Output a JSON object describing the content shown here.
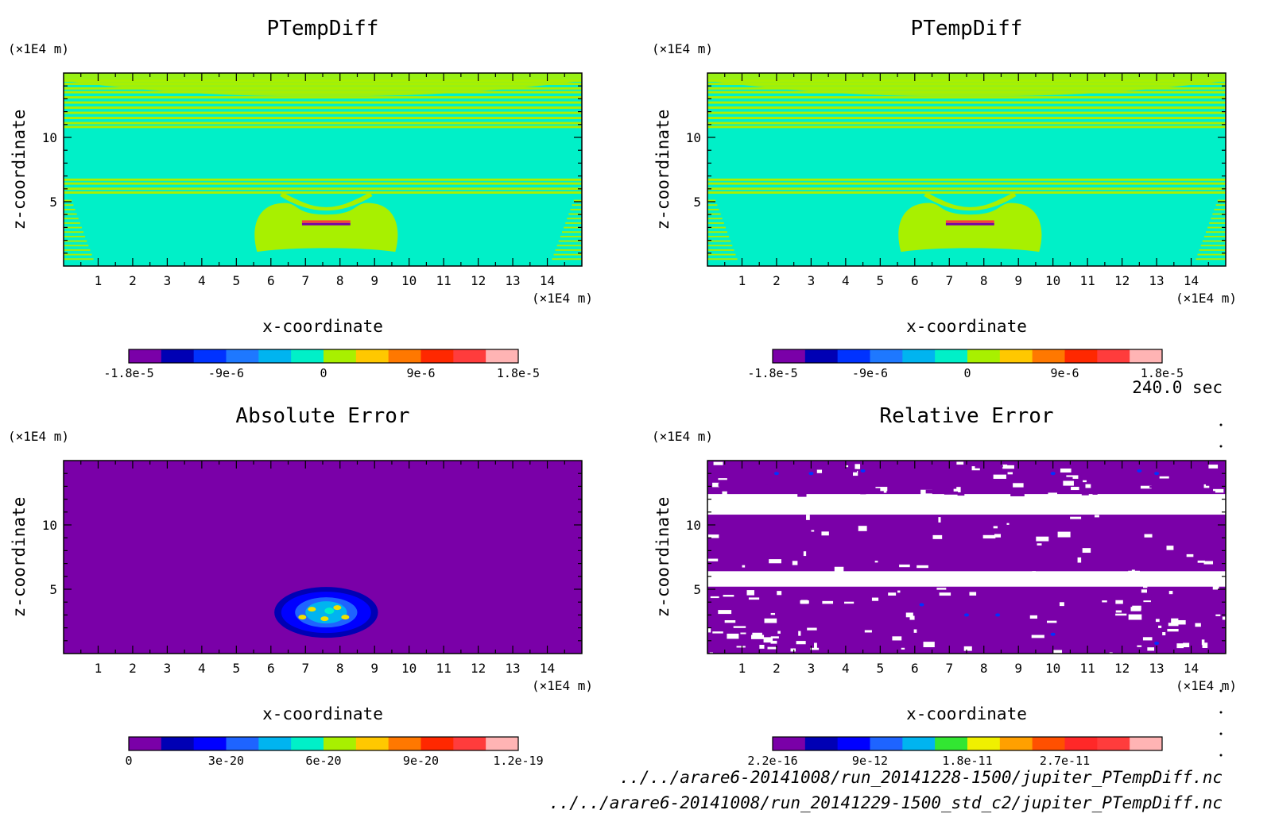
{
  "figure": {
    "time_label": "240.0 sec",
    "files": [
      "../../arare6-20141008/run_20141228-1500/jupiter_PTempDiff.nc",
      "../../arare6-20141008/run_20141229-1500_std_c2/jupiter_PTempDiff.nc"
    ]
  },
  "colors": {
    "background": "#ffffff",
    "frame": "#000000",
    "purple": "#7a00a8",
    "cyan": "#00f0c8",
    "yellowgreen": "#a8f000",
    "white_gap": "#ffffff"
  },
  "chart_data": [
    {
      "type": "heatmap",
      "title": "PTempDiff",
      "xlabel": "x-coordinate",
      "ylabel": "z-coordinate",
      "x_unit": "(×1E4 m)",
      "y_unit": "(×1E4 m)",
      "xlim": [
        0,
        15
      ],
      "ylim": [
        0,
        15
      ],
      "x_ticks": [
        "1",
        "2",
        "3",
        "4",
        "5",
        "6",
        "7",
        "8",
        "9",
        "10",
        "11",
        "12",
        "13",
        "14"
      ],
      "y_ticks": [
        "5",
        "10"
      ],
      "colorbar": {
        "colors": [
          "#7a00a8",
          "#0000b4",
          "#0032ff",
          "#1e78ff",
          "#00b4f0",
          "#00f0c8",
          "#a8f000",
          "#ffc800",
          "#ff7800",
          "#ff2800",
          "#ff3c3c",
          "#ffb4b4"
        ],
        "tick_labels": [
          "-1.8e-5",
          "-9e-6",
          "0",
          "9e-6",
          "1.8e-5"
        ]
      },
      "pattern": "stripes"
    },
    {
      "type": "heatmap",
      "title": "PTempDiff",
      "xlabel": "x-coordinate",
      "ylabel": "z-coordinate",
      "x_unit": "(×1E4 m)",
      "y_unit": "(×1E4 m)",
      "xlim": [
        0,
        15
      ],
      "ylim": [
        0,
        15
      ],
      "x_ticks": [
        "1",
        "2",
        "3",
        "4",
        "5",
        "6",
        "7",
        "8",
        "9",
        "10",
        "11",
        "12",
        "13",
        "14"
      ],
      "y_ticks": [
        "5",
        "10"
      ],
      "colorbar": {
        "colors": [
          "#7a00a8",
          "#0000b4",
          "#0032ff",
          "#1e78ff",
          "#00b4f0",
          "#00f0c8",
          "#a8f000",
          "#ffc800",
          "#ff7800",
          "#ff2800",
          "#ff3c3c",
          "#ffb4b4"
        ],
        "tick_labels": [
          "-1.8e-5",
          "-9e-6",
          "0",
          "9e-6",
          "1.8e-5"
        ]
      },
      "pattern": "stripes"
    },
    {
      "type": "heatmap",
      "title": "Absolute Error",
      "xlabel": "x-coordinate",
      "ylabel": "z-coordinate",
      "x_unit": "(×1E4 m)",
      "y_unit": "(×1E4 m)",
      "xlim": [
        0,
        15
      ],
      "ylim": [
        0,
        15
      ],
      "x_ticks": [
        "1",
        "2",
        "3",
        "4",
        "5",
        "6",
        "7",
        "8",
        "9",
        "10",
        "11",
        "12",
        "13",
        "14"
      ],
      "y_ticks": [
        "5",
        "10"
      ],
      "colorbar": {
        "colors": [
          "#7a00a8",
          "#0000b4",
          "#0000ff",
          "#1e64ff",
          "#00b4f0",
          "#00f0c8",
          "#a8f000",
          "#ffc800",
          "#ff7800",
          "#ff2800",
          "#ff3c3c",
          "#ffb4b4"
        ],
        "tick_labels": [
          "0",
          "3e-20",
          "6e-20",
          "9e-20",
          "1.2e-19"
        ]
      },
      "pattern": "blob"
    },
    {
      "type": "heatmap",
      "title": "Relative Error",
      "xlabel": "x-coordinate",
      "ylabel": "z-coordinate",
      "x_unit": "(×1E4 m)",
      "y_unit": "(×1E4 m)",
      "xlim": [
        0,
        15
      ],
      "ylim": [
        0,
        15
      ],
      "x_ticks": [
        "1",
        "2",
        "3",
        "4",
        "5",
        "6",
        "7",
        "8",
        "9",
        "10",
        "11",
        "12",
        "13",
        "14"
      ],
      "y_ticks": [
        "5",
        "10"
      ],
      "colorbar": {
        "colors": [
          "#7a00a8",
          "#0000b4",
          "#0000ff",
          "#1e64ff",
          "#00b4f0",
          "#32e632",
          "#f0f000",
          "#ffa000",
          "#ff5000",
          "#ff2828",
          "#ff3c3c",
          "#ffb4b4"
        ],
        "tick_labels": [
          "2.2e-16",
          "9e-12",
          "1.8e-11",
          "2.7e-11"
        ]
      },
      "pattern": "speckle"
    }
  ]
}
